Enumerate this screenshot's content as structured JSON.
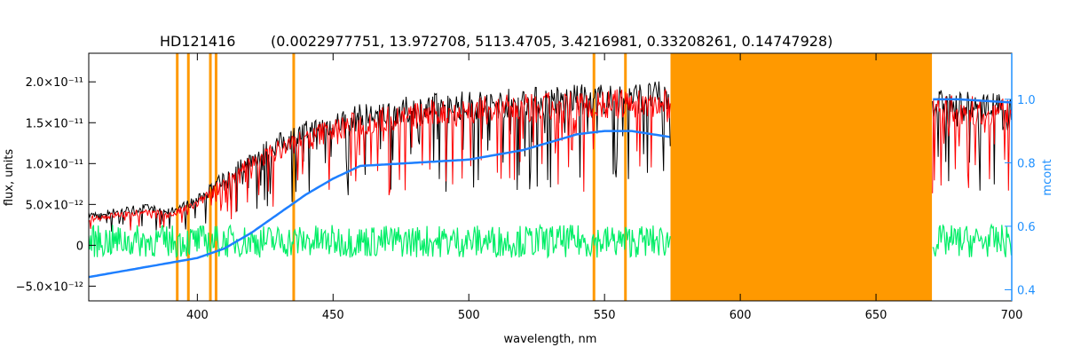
{
  "chart_data": {
    "type": "line",
    "title": "HD121416",
    "subtitle": "(0.0022977751, 13.972708, 5113.4705, 3.4216981, 0.33208261, 0.14747928)",
    "xlabel": "wavelength, nm",
    "ylabel": "flux, units",
    "y2label": "mcont",
    "xlim": [
      360,
      700
    ],
    "ylim": [
      -6.8e-12,
      2.35e-11
    ],
    "y2lim": [
      0.365,
      1.145
    ],
    "x_ticks": [
      400,
      450,
      500,
      550,
      600,
      650,
      700
    ],
    "x_tick_labels": [
      "400",
      "450",
      "500",
      "550",
      "600",
      "650",
      "700"
    ],
    "y_ticks": [
      -5e-12,
      0,
      5e-12,
      1e-11,
      1.5e-11,
      2e-11
    ],
    "y_tick_labels": [
      "−5.0×10⁻¹²",
      "0",
      "5.0×10⁻¹²",
      "1.0×10⁻¹¹",
      "1.5×10⁻¹¹",
      "2.0×10⁻¹¹"
    ],
    "y2_ticks": [
      0.4,
      0.6,
      0.8,
      1.0
    ],
    "y2_tick_labels": [
      "0.4",
      "0.6",
      "0.8",
      "1.0"
    ],
    "masked_lines": [
      392.6,
      396.7,
      404.8,
      406.9,
      435.5,
      546.1,
      557.7
    ],
    "masked_bands": [
      [
        574.3,
        670.6
      ]
    ],
    "series": [
      {
        "color": "#000000",
        "x": [
          360,
          370,
          380,
          390,
          400,
          410,
          420,
          430,
          440,
          450,
          460,
          470,
          480,
          490,
          500,
          510,
          520,
          530,
          540,
          550,
          560,
          570,
          575,
          670,
          680,
          690,
          700
        ],
        "values": [
          4e-12,
          4.5e-12,
          5e-12,
          4.5e-12,
          6e-12,
          9e-12,
          1.15e-11,
          1.35e-11,
          1.5e-11,
          1.62e-11,
          1.7e-11,
          1.76e-11,
          1.8e-11,
          1.84e-11,
          1.86e-11,
          1.88e-11,
          1.9e-11,
          1.92e-11,
          1.93e-11,
          1.95e-11,
          1.96e-11,
          1.97e-11,
          1.97e-11,
          1.88e-11,
          1.86e-11,
          1.84e-11,
          1.82e-11
        ]
      },
      {
        "color": "#ff0000",
        "x": [
          360,
          370,
          380,
          390,
          400,
          410,
          420,
          430,
          440,
          450,
          460,
          470,
          480,
          490,
          500,
          510,
          520,
          530,
          540,
          550,
          560,
          570,
          575,
          670,
          680,
          690,
          700
        ],
        "values": [
          3.5e-12,
          4e-12,
          4.5e-12,
          4e-12,
          5.5e-12,
          8.5e-12,
          1.08e-11,
          1.28e-11,
          1.42e-11,
          1.54e-11,
          1.62e-11,
          1.68e-11,
          1.72e-11,
          1.76e-11,
          1.78e-11,
          1.8e-11,
          1.82e-11,
          1.84e-11,
          1.86e-11,
          1.87e-11,
          1.88e-11,
          1.89e-11,
          1.89e-11,
          1.82e-11,
          1.8e-11,
          1.79e-11,
          1.78e-11
        ]
      },
      {
        "color": "#00ee66",
        "x": [
          360,
          400,
          450,
          500,
          550,
          575,
          670,
          700
        ],
        "values": [
          5e-13,
          5e-13,
          5e-13,
          5e-13,
          5e-13,
          5e-13,
          5e-13,
          5e-13
        ]
      },
      {
        "color": "#1e7fff",
        "axis": "right",
        "x": [
          360,
          380,
          400,
          410,
          420,
          430,
          440,
          450,
          460,
          480,
          500,
          520,
          540,
          550,
          560,
          575,
          670,
          680,
          690,
          700
        ],
        "values": [
          0.44,
          0.47,
          0.5,
          0.53,
          0.58,
          0.64,
          0.7,
          0.75,
          0.79,
          0.8,
          0.81,
          0.84,
          0.89,
          0.9,
          0.9,
          0.88,
          1.0,
          1.0,
          0.995,
          0.99
        ]
      }
    ]
  }
}
